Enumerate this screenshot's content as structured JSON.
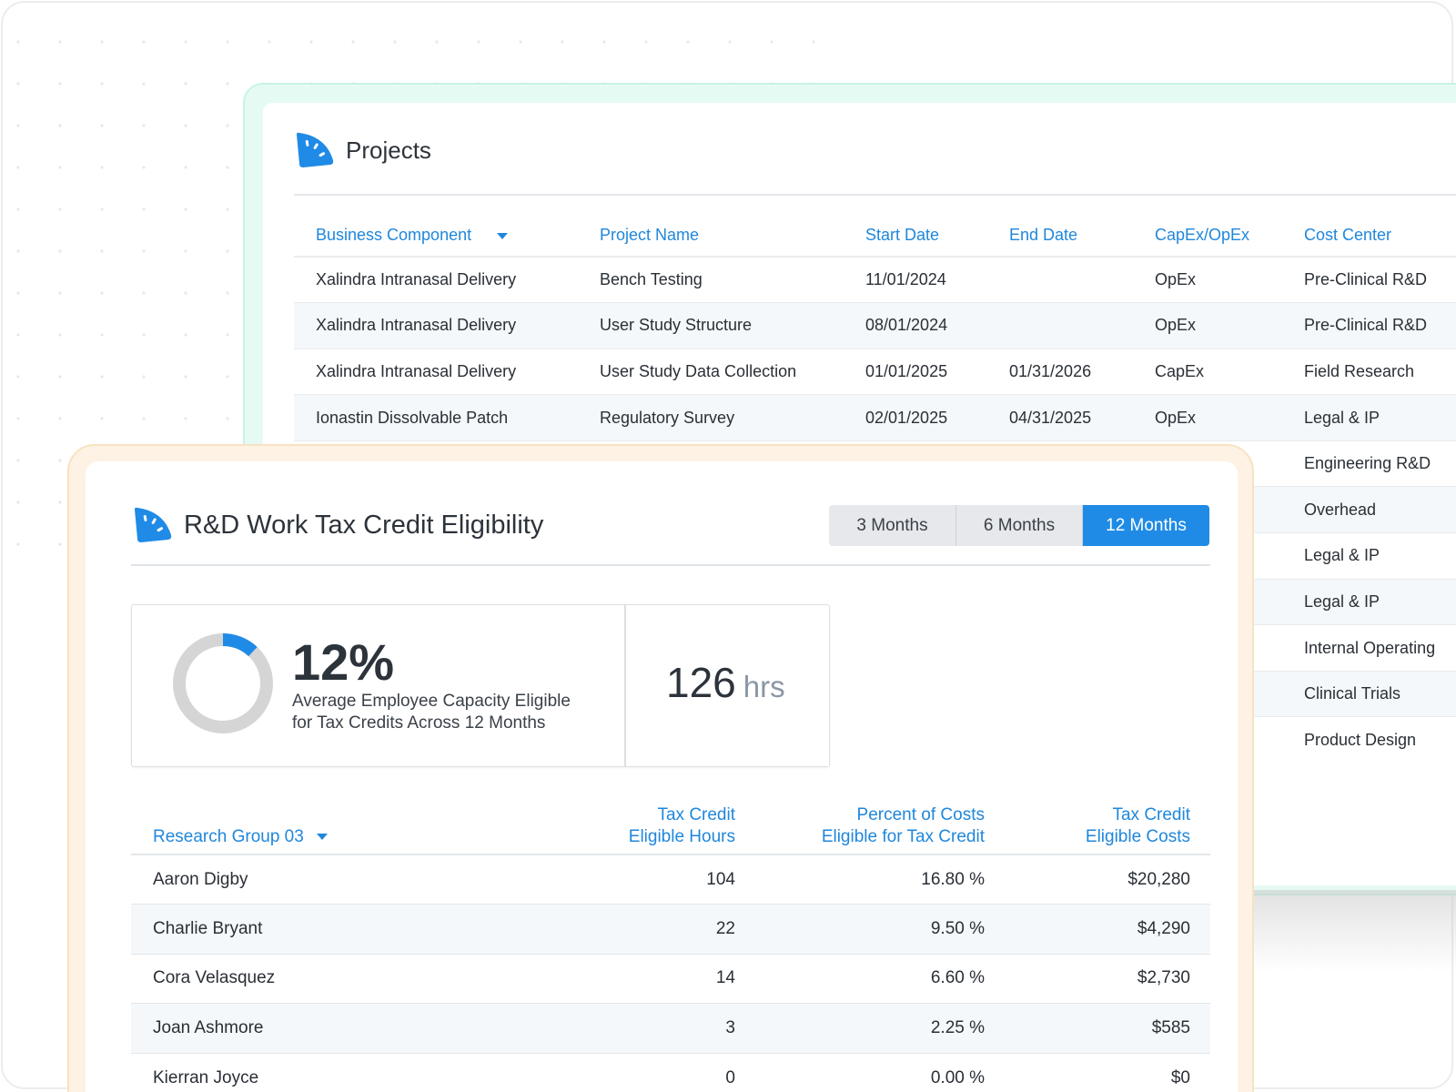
{
  "projects": {
    "title": "Projects",
    "columns": [
      "Business Component",
      "Project Name",
      "Start Date",
      "End Date",
      "CapEx/OpEx",
      "Cost Center"
    ],
    "rows": [
      [
        "Xalindra Intranasal Delivery",
        "Bench Testing",
        "11/01/2024",
        "",
        "OpEx",
        "Pre-Clinical R&D"
      ],
      [
        "Xalindra Intranasal Delivery",
        "User Study Structure",
        "08/01/2024",
        "",
        "OpEx",
        "Pre-Clinical R&D"
      ],
      [
        "Xalindra Intranasal Delivery",
        "User Study Data Collection",
        "01/01/2025",
        "01/31/2026",
        "CapEx",
        "Field Research"
      ],
      [
        "Ionastin Dissolvable Patch",
        "Regulatory Survey",
        "02/01/2025",
        "04/31/2025",
        "OpEx",
        "Legal & IP"
      ],
      [
        "",
        "",
        "",
        "",
        "",
        "Engineering R&D"
      ],
      [
        "",
        "",
        "",
        "",
        "",
        "Overhead"
      ],
      [
        "",
        "",
        "",
        "",
        "",
        "Legal & IP"
      ],
      [
        "",
        "",
        "",
        "",
        "",
        "Legal & IP"
      ],
      [
        "",
        "",
        "",
        "",
        "",
        "Internal Operating"
      ],
      [
        "",
        "",
        "",
        "",
        "",
        "Clinical Trials"
      ],
      [
        "",
        "",
        "",
        "",
        "",
        "Product Design"
      ]
    ]
  },
  "rd": {
    "title": "R&D Work Tax Credit Eligibility",
    "ranges": [
      "3 Months",
      "6 Months",
      "12 Months"
    ],
    "selected_range": "12 Months",
    "capacity": {
      "percent_label": "12%",
      "percent_value": 12,
      "description_line1": "Average Employee Capacity Eligible",
      "description_line2": "for Tax Credits Across 12 Months"
    },
    "hours": {
      "value": "126",
      "unit": "hrs"
    },
    "group_selector": "Research Group 03",
    "columns": {
      "hours_line1": "Tax Credit",
      "hours_line2": "Eligible Hours",
      "percent_line1": "Percent of Costs",
      "percent_line2": "Eligible for Tax Credit",
      "costs_line1": "Tax Credit",
      "costs_line2": "Eligible Costs"
    },
    "rows": [
      [
        "Aaron Digby",
        "104",
        "16.80 %",
        "$20,280"
      ],
      [
        "Charlie Bryant",
        "22",
        "9.50 %",
        "$4,290"
      ],
      [
        "Cora Velasquez",
        "14",
        "6.60 %",
        "$2,730"
      ],
      [
        "Joan Ashmore",
        "3",
        "2.25 %",
        "$585"
      ],
      [
        "Kierran Joyce",
        "0",
        "0.00 %",
        "$0"
      ]
    ]
  },
  "colors": {
    "accent": "#1f87dc",
    "donut_track": "#d5d5d5",
    "projects_frame": "#e6faf4",
    "rd_frame": "#fdf2e3"
  }
}
